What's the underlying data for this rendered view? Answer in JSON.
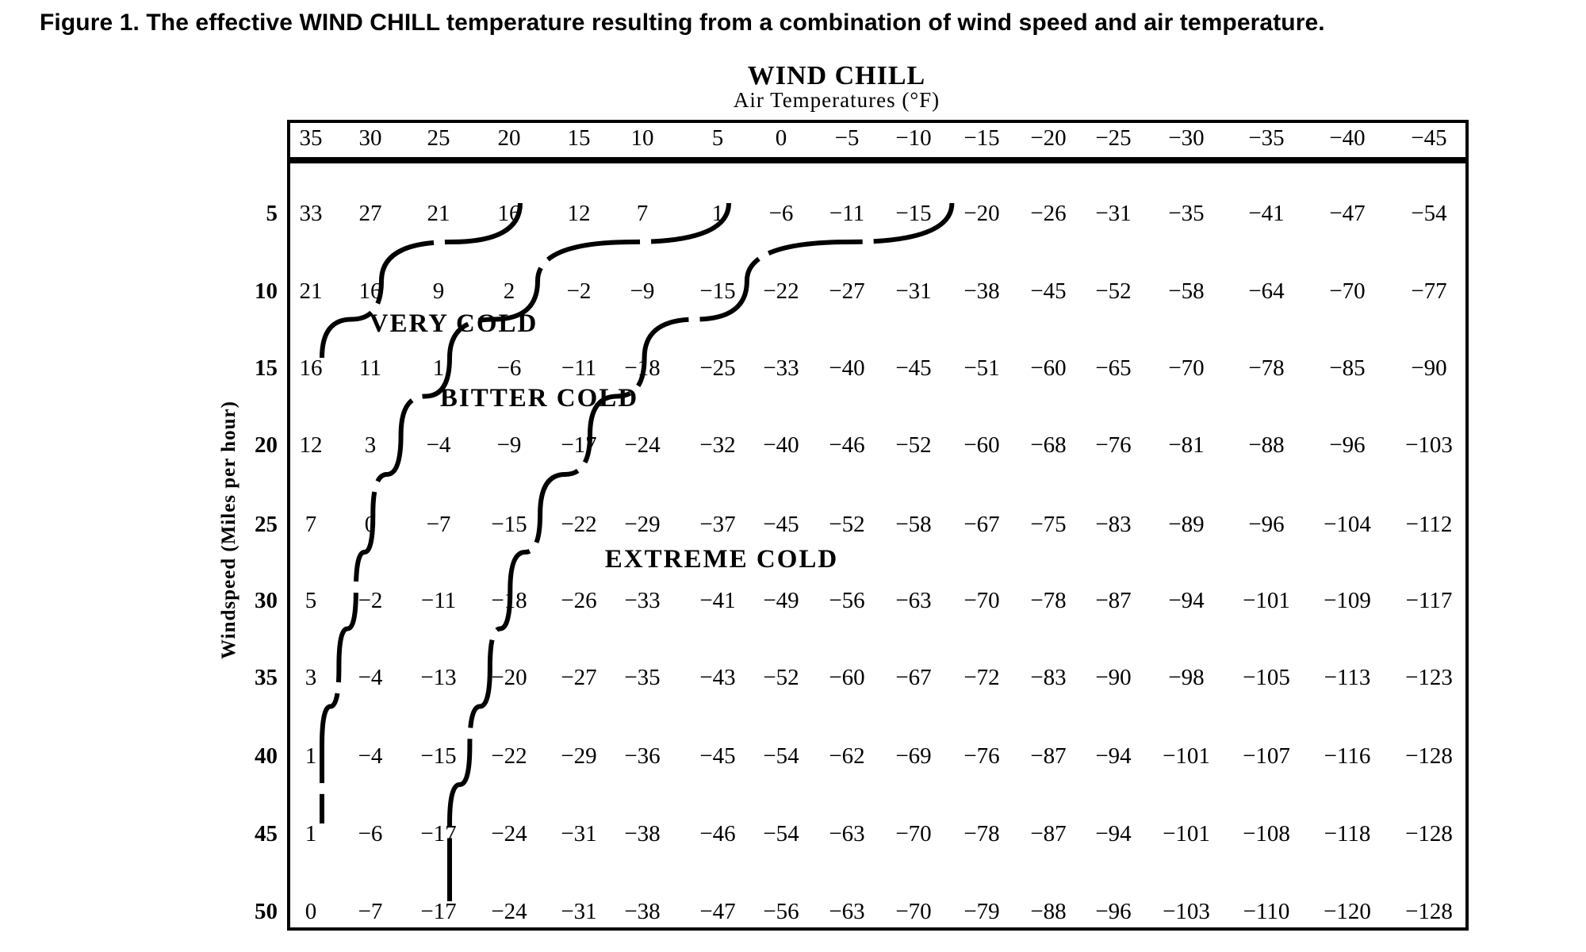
{
  "caption": "Figure 1.  The effective WIND CHILL temperature resulting from a combination of wind speed and air temperature.",
  "chart_data": {
    "type": "table",
    "title": "WIND CHILL",
    "subtitle": "Air Temperatures (°F)",
    "ylabel": "Windspeed (Miles per hour)",
    "columns": [
      "35",
      "30",
      "25",
      "20",
      "15",
      "10",
      "5",
      "0",
      "−5",
      "−10",
      "−15",
      "−20",
      "−25",
      "−30",
      "−35",
      "−40",
      "−45"
    ],
    "rows": [
      {
        "windspeed": "5",
        "values": [
          "33",
          "27",
          "21",
          "16",
          "12",
          "7",
          "1",
          "−6",
          "−11",
          "−15",
          "−20",
          "−26",
          "−31",
          "−35",
          "−41",
          "−47",
          "−54"
        ]
      },
      {
        "windspeed": "10",
        "values": [
          "21",
          "16",
          "9",
          "2",
          "−2",
          "−9",
          "−15",
          "−22",
          "−27",
          "−31",
          "−38",
          "−45",
          "−52",
          "−58",
          "−64",
          "−70",
          "−77"
        ]
      },
      {
        "windspeed": "15",
        "values": [
          "16",
          "11",
          "1",
          "−6",
          "−11",
          "−18",
          "−25",
          "−33",
          "−40",
          "−45",
          "−51",
          "−60",
          "−65",
          "−70",
          "−78",
          "−85",
          "−90"
        ]
      },
      {
        "windspeed": "20",
        "values": [
          "12",
          "3",
          "−4",
          "−9",
          "−17",
          "−24",
          "−32",
          "−40",
          "−46",
          "−52",
          "−60",
          "−68",
          "−76",
          "−81",
          "−88",
          "−96",
          "−103"
        ]
      },
      {
        "windspeed": "25",
        "values": [
          "7",
          "0",
          "−7",
          "−15",
          "−22",
          "−29",
          "−37",
          "−45",
          "−52",
          "−58",
          "−67",
          "−75",
          "−83",
          "−89",
          "−96",
          "−104",
          "−112"
        ]
      },
      {
        "windspeed": "30",
        "values": [
          "5",
          "−2",
          "−11",
          "−18",
          "−26",
          "−33",
          "−41",
          "−49",
          "−56",
          "−63",
          "−70",
          "−78",
          "−87",
          "−94",
          "−101",
          "−109",
          "−117"
        ]
      },
      {
        "windspeed": "35",
        "values": [
          "3",
          "−4",
          "−13",
          "−20",
          "−27",
          "−35",
          "−43",
          "−52",
          "−60",
          "−67",
          "−72",
          "−83",
          "−90",
          "−98",
          "−105",
          "−113",
          "−123"
        ]
      },
      {
        "windspeed": "40",
        "values": [
          "1",
          "−4",
          "−15",
          "−22",
          "−29",
          "−36",
          "−45",
          "−54",
          "−62",
          "−69",
          "−76",
          "−87",
          "−94",
          "−101",
          "−107",
          "−116",
          "−128"
        ]
      },
      {
        "windspeed": "45",
        "values": [
          "1",
          "−6",
          "−17",
          "−24",
          "−31",
          "−38",
          "−46",
          "−54",
          "−63",
          "−70",
          "−78",
          "−87",
          "−94",
          "−101",
          "−108",
          "−118",
          "−128"
        ]
      },
      {
        "windspeed": "50",
        "values": [
          "0",
          "−7",
          "−17",
          "−24",
          "−31",
          "−38",
          "−47",
          "−56",
          "−63",
          "−70",
          "−79",
          "−88",
          "−96",
          "−103",
          "−110",
          "−120",
          "−128"
        ]
      }
    ],
    "zones": [
      {
        "label": "VERY COLD",
        "boundary_wind_chill_f": 16
      },
      {
        "label": "BITTER COLD",
        "boundary_wind_chill_f": 1
      },
      {
        "label": "EXTREME COLD",
        "boundary_wind_chill_f": -17
      }
    ],
    "grid": false
  }
}
